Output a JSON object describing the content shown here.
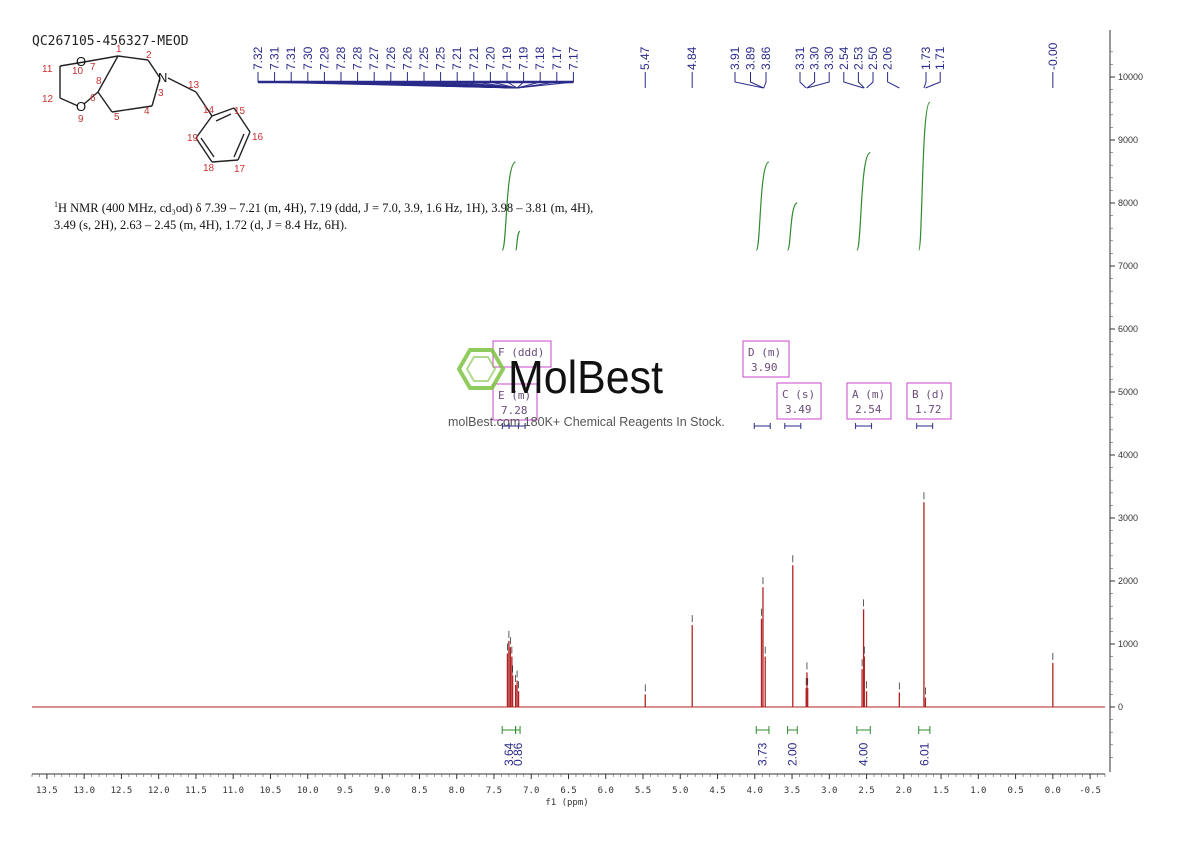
{
  "sample_id": "QC267105-456327-MEOD",
  "description": {
    "nucleus": "1",
    "text": "H NMR (400 MHz, cd₃od) δ 7.39 – 7.21 (m, 4H), 7.19 (ddd, J = 7.0, 3.9, 1.6 Hz, 1H), 3.98 – 3.81 (m, 4H), 3.49 (s, 2H), 2.63 – 2.45 (m, 4H), 1.72 (d, J = 8.4 Hz, 6H)."
  },
  "watermark": {
    "brand": "MolBest",
    "tagline": "molBest.com 180K+ Chemical Reagents In Stock."
  },
  "structure": {
    "atoms": [
      "O",
      "O",
      "N"
    ],
    "numbers": [
      "1",
      "2",
      "3",
      "4",
      "5",
      "6",
      "7",
      "8",
      "9",
      "10",
      "11",
      "12",
      "13",
      "14",
      "15",
      "16",
      "17",
      "18",
      "19"
    ]
  },
  "colors": {
    "spectrum": "#b22222",
    "integral": "#2e8b2e",
    "peak_label": "#2a2a8a",
    "multiplet_box": "#cc44cc",
    "watermark": "#7dc242"
  },
  "chart_data": {
    "type": "line",
    "xlabel": "f1 (ppm)",
    "xlim": [
      13.7,
      -0.7
    ],
    "x_reversed": true,
    "ylim": [
      -1000,
      10600
    ],
    "x_ticks": [
      "13.5",
      "13.0",
      "12.5",
      "12.0",
      "11.5",
      "11.0",
      "10.5",
      "10.0",
      "9.5",
      "9.0",
      "8.5",
      "8.0",
      "7.5",
      "7.0",
      "6.5",
      "6.0",
      "5.5",
      "5.0",
      "4.5",
      "4.0",
      "3.5",
      "3.0",
      "2.5",
      "2.0",
      "1.5",
      "1.0",
      "0.5",
      "0.0",
      "-0.5"
    ],
    "y_ticks": [
      "10000",
      "9000",
      "8000",
      "7000",
      "6000",
      "5000",
      "4000",
      "3000",
      "2000",
      "1000",
      "0"
    ],
    "peaks": [
      {
        "ppm": 7.32,
        "h": 850
      },
      {
        "ppm": 7.3,
        "h": 1050
      },
      {
        "ppm": 7.28,
        "h": 950
      },
      {
        "ppm": 7.26,
        "h": 800
      },
      {
        "ppm": 7.25,
        "h": 500
      },
      {
        "ppm": 7.21,
        "h": 350
      },
      {
        "ppm": 7.19,
        "h": 420
      },
      {
        "ppm": 7.17,
        "h": 250
      },
      {
        "ppm": 5.47,
        "h": 200
      },
      {
        "ppm": 4.84,
        "h": 1300
      },
      {
        "ppm": 3.91,
        "h": 1400
      },
      {
        "ppm": 3.89,
        "h": 1900
      },
      {
        "ppm": 3.86,
        "h": 800
      },
      {
        "ppm": 3.49,
        "h": 2250
      },
      {
        "ppm": 3.31,
        "h": 300
      },
      {
        "ppm": 3.3,
        "h": 550
      },
      {
        "ppm": 3.29,
        "h": 300
      },
      {
        "ppm": 2.56,
        "h": 600
      },
      {
        "ppm": 2.54,
        "h": 1550
      },
      {
        "ppm": 2.53,
        "h": 800
      },
      {
        "ppm": 2.5,
        "h": 250
      },
      {
        "ppm": 2.06,
        "h": 230
      },
      {
        "ppm": 1.73,
        "h": 3250
      },
      {
        "ppm": 1.71,
        "h": 150
      },
      {
        "ppm": 0.0,
        "h": 700
      }
    ],
    "peak_labels": {
      "group1": [
        "7.32",
        "7.31",
        "7.31",
        "7.30",
        "7.29",
        "7.28",
        "7.28",
        "7.27",
        "7.26",
        "7.26",
        "7.25",
        "7.25",
        "7.21",
        "7.21",
        "7.20",
        "7.19",
        "7.19",
        "7.18",
        "7.17",
        "7.17"
      ],
      "group1_anchor": 7.19,
      "singles": [
        {
          "text": "5.47",
          "ppm": 5.47
        },
        {
          "text": "4.84",
          "ppm": 4.84
        }
      ],
      "group2": [
        "3.91",
        "3.89",
        "3.86"
      ],
      "group2_anchor": 3.88,
      "group3": [
        "3.31",
        "3.30",
        "3.30",
        "2.54",
        "2.53",
        "2.50",
        "2.06"
      ],
      "group3_ppm": [
        3.31,
        3.3,
        3.3,
        2.54,
        2.53,
        2.5,
        2.06
      ],
      "group4": [
        "1.73",
        "1.71"
      ],
      "group4_ppm": [
        1.73,
        1.71
      ],
      "tms": {
        "text": "-0.00",
        "ppm": 0.0
      }
    },
    "multiplets": [
      {
        "letter": "F",
        "kind": "ddd",
        "shift": "",
        "center": 7.19
      },
      {
        "letter": "E",
        "kind": "m",
        "shift": "7.28",
        "center": 7.28
      },
      {
        "letter": "D",
        "kind": "m",
        "shift": "3.90",
        "center": 3.9
      },
      {
        "letter": "C",
        "kind": "s",
        "shift": "3.49",
        "center": 3.49
      },
      {
        "letter": "A",
        "kind": "m",
        "shift": "2.54",
        "center": 2.54
      },
      {
        "letter": "B",
        "kind": "d",
        "shift": "1.72",
        "center": 1.72
      }
    ],
    "integrals": [
      {
        "value": "3.64",
        "from": 7.39,
        "to": 7.21,
        "top": 8650,
        "bottom": 7250
      },
      {
        "value": "0.86",
        "from": 7.21,
        "to": 7.15,
        "top": 7550,
        "bottom": 7250
      },
      {
        "value": "3.73",
        "from": 3.98,
        "to": 3.81,
        "top": 8650,
        "bottom": 7250
      },
      {
        "value": "2.00",
        "from": 3.56,
        "to": 3.43,
        "top": 8000,
        "bottom": 7250
      },
      {
        "value": "4.00",
        "from": 2.63,
        "to": 2.45,
        "top": 8800,
        "bottom": 7250
      },
      {
        "value": "6.01",
        "from": 1.8,
        "to": 1.65,
        "top": 9600,
        "bottom": 7250
      }
    ]
  }
}
